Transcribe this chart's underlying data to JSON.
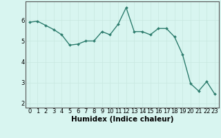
{
  "x": [
    0,
    1,
    2,
    3,
    4,
    5,
    6,
    7,
    8,
    9,
    10,
    11,
    12,
    13,
    14,
    15,
    16,
    17,
    18,
    19,
    20,
    21,
    22,
    23
  ],
  "y": [
    5.9,
    5.95,
    5.75,
    5.55,
    5.3,
    4.8,
    4.85,
    5.0,
    5.0,
    5.45,
    5.3,
    5.8,
    6.6,
    5.45,
    5.45,
    5.3,
    5.6,
    5.6,
    5.2,
    4.35,
    2.95,
    2.6,
    3.05,
    2.45
  ],
  "line_color": "#2e7d6e",
  "marker": "D",
  "marker_size": 2.0,
  "linewidth": 1.0,
  "bg_color": "#d8f5f0",
  "grid_color_major": "#c8e8e0",
  "grid_color_minor": "#ddf0eb",
  "xlabel": "Humidex (Indice chaleur)",
  "xlim": [
    -0.5,
    23.5
  ],
  "ylim": [
    1.8,
    6.9
  ],
  "yticks": [
    2,
    3,
    4,
    5,
    6
  ],
  "xticks": [
    0,
    1,
    2,
    3,
    4,
    5,
    6,
    7,
    8,
    9,
    10,
    11,
    12,
    13,
    14,
    15,
    16,
    17,
    18,
    19,
    20,
    21,
    22,
    23
  ],
  "tick_fontsize": 6,
  "label_fontsize": 7.5,
  "spine_color": "#555555"
}
